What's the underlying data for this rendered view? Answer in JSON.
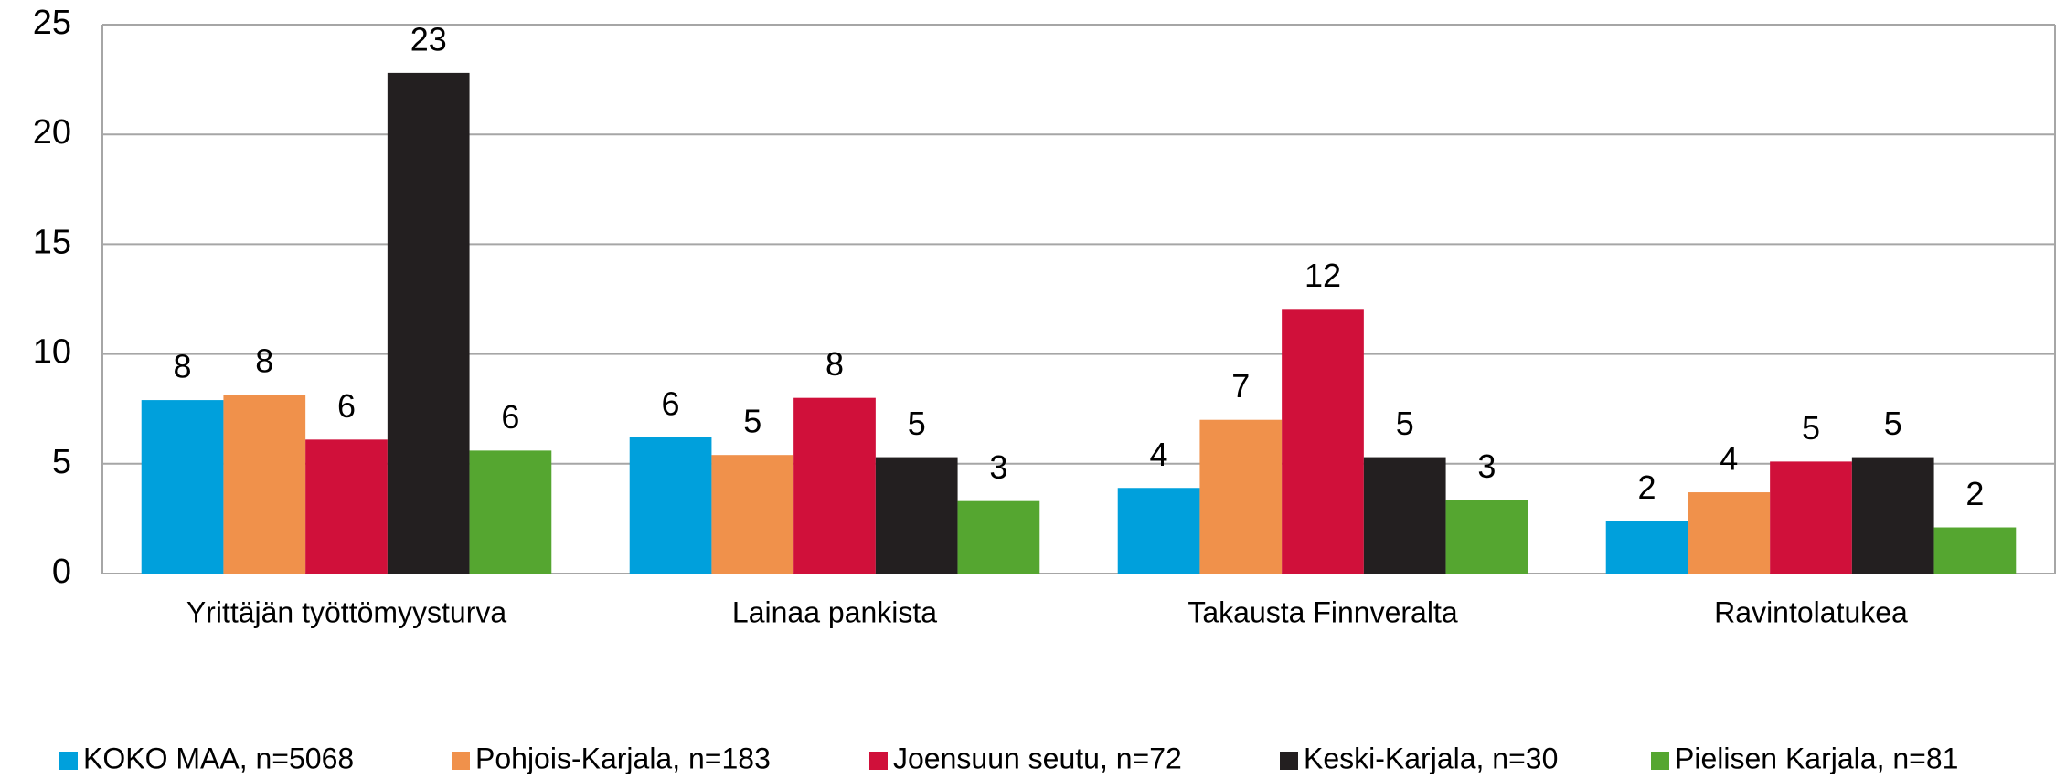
{
  "chart_data": {
    "type": "bar",
    "categories": [
      "Yrittäjän työttömyysturva",
      "Lainaa pankista",
      "Takausta Finnveralta",
      "Ravintolatukea"
    ],
    "series": [
      {
        "name": "KOKO MAA, n=5068",
        "color": "#00a0dc",
        "values": [
          7.9,
          6.2,
          3.9,
          2.4
        ],
        "value_labels": [
          "8",
          "6",
          "4",
          "2"
        ]
      },
      {
        "name": "Pohjois-Karjala, n=183",
        "color": "#f0914b",
        "values": [
          8.15,
          5.4,
          7.0,
          3.7
        ],
        "value_labels": [
          "8",
          "5",
          "7",
          "4"
        ]
      },
      {
        "name": "Joensuun seutu, n=72",
        "color": "#d0103a",
        "values": [
          6.1,
          8.0,
          12.05,
          5.1
        ],
        "value_labels": [
          "6",
          "8",
          "12",
          "5"
        ]
      },
      {
        "name": "Keski-Karjala, n=30",
        "color": "#231f20",
        "values": [
          22.8,
          5.3,
          5.3,
          5.3
        ],
        "value_labels": [
          "23",
          "5",
          "5",
          "5"
        ]
      },
      {
        "name": "Pielisen Karjala, n=81",
        "color": "#55a630",
        "values": [
          5.6,
          3.3,
          3.35,
          2.1
        ],
        "value_labels": [
          "6",
          "3",
          "3",
          "2"
        ]
      }
    ],
    "ylim": [
      0,
      25
    ],
    "yticks": [
      0,
      5,
      10,
      15,
      20,
      25
    ],
    "grid": true,
    "legend": "bottom"
  }
}
